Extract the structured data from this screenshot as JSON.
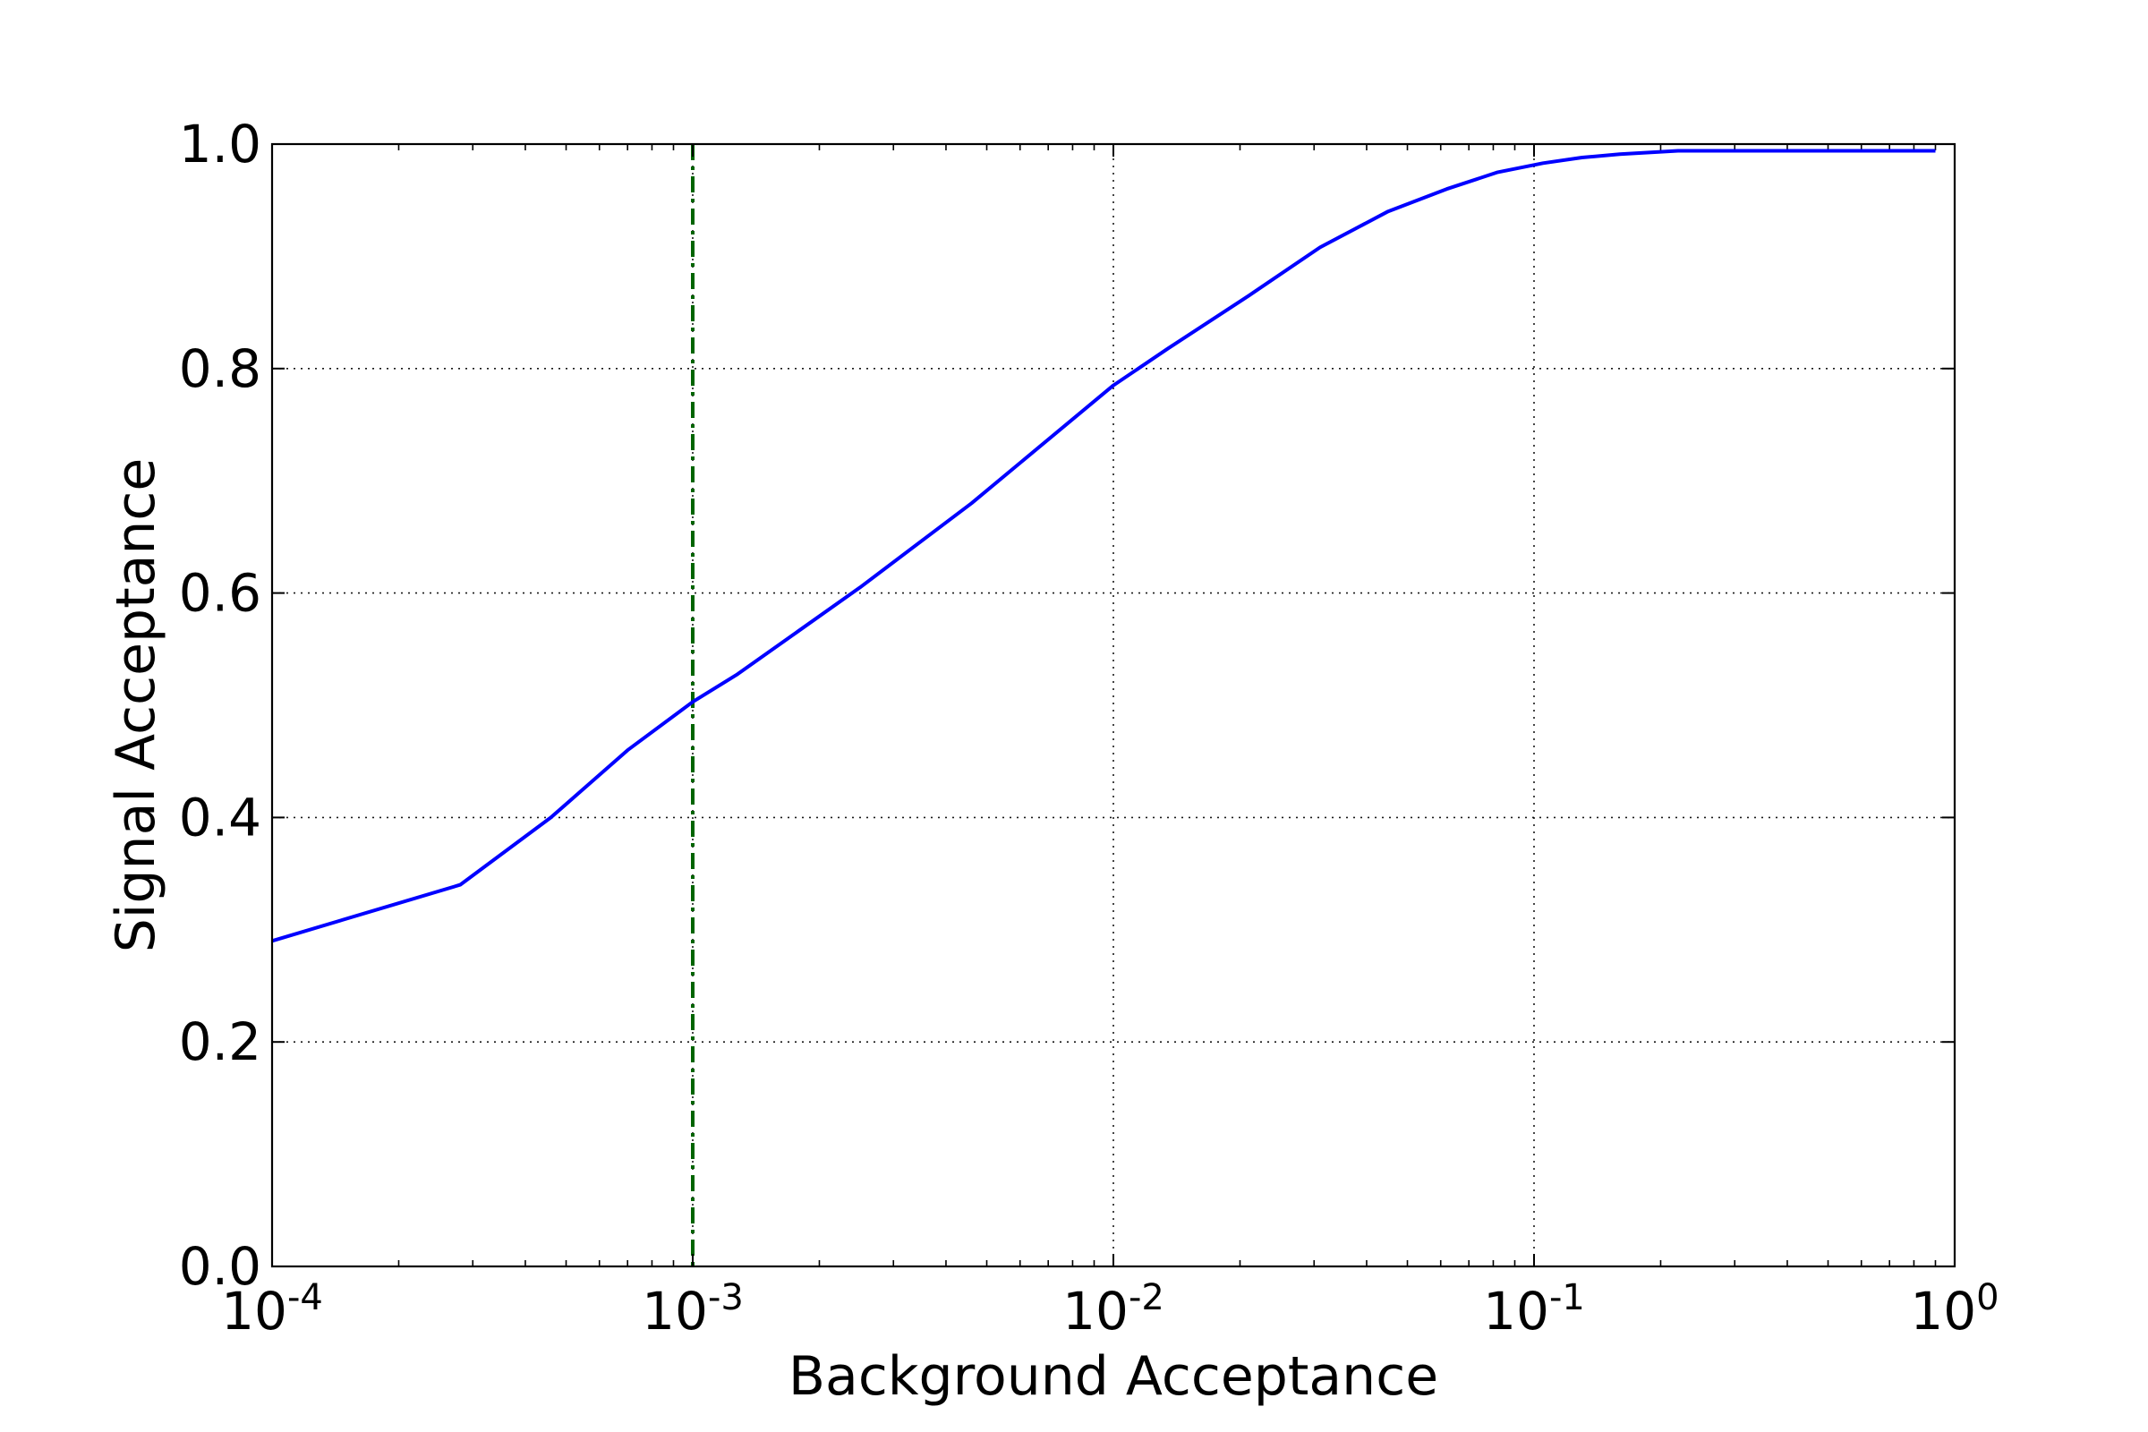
{
  "chart_data": {
    "type": "line",
    "xlabel": "Background Acceptance",
    "ylabel": "Signal Acceptance",
    "xscale": "log",
    "xlim": [
      0.0001,
      1
    ],
    "ylim": [
      0.0,
      1.0
    ],
    "grid": true,
    "x_ticks": [
      {
        "value": 0.0001,
        "base": "10",
        "exp": "-4"
      },
      {
        "value": 0.001,
        "base": "10",
        "exp": "-3"
      },
      {
        "value": 0.01,
        "base": "10",
        "exp": "-2"
      },
      {
        "value": 0.1,
        "base": "10",
        "exp": "-1"
      },
      {
        "value": 1,
        "base": "10",
        "exp": "0"
      }
    ],
    "y_ticks": [
      {
        "value": 0.0,
        "label": "0.0"
      },
      {
        "value": 0.2,
        "label": "0.2"
      },
      {
        "value": 0.4,
        "label": "0.4"
      },
      {
        "value": 0.6,
        "label": "0.6"
      },
      {
        "value": 0.8,
        "label": "0.8"
      },
      {
        "value": 1.0,
        "label": "1.0"
      }
    ],
    "series": [
      {
        "color": "#0000ff",
        "x": [
          0.0001,
          0.00028,
          0.00046,
          0.0007,
          0.001,
          0.00127,
          0.0025,
          0.0046,
          0.01,
          0.0135,
          0.021,
          0.031,
          0.045,
          0.062,
          0.082,
          0.105,
          0.13,
          0.16,
          0.22,
          0.35,
          0.9
        ],
        "y": [
          0.29,
          0.34,
          0.4,
          0.46,
          0.503,
          0.527,
          0.605,
          0.68,
          0.785,
          0.818,
          0.865,
          0.908,
          0.94,
          0.96,
          0.975,
          0.983,
          0.988,
          0.991,
          0.994,
          0.994,
          0.994
        ]
      }
    ],
    "reference_lines": [
      {
        "axis": "x",
        "value": 0.001,
        "color": "#006400",
        "style": "dashdot"
      }
    ]
  }
}
